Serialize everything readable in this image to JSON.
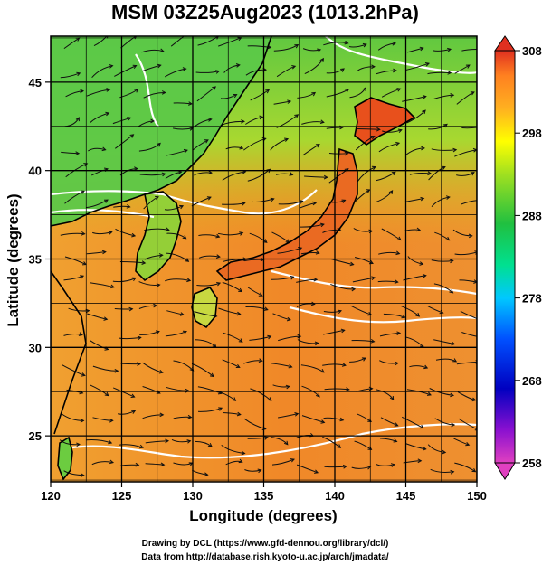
{
  "title": "MSM 03Z25Aug2023 (1013.2hPa)",
  "x_axis": {
    "label": "Longitude (degrees)",
    "range": [
      120,
      150
    ],
    "ticks": [
      120,
      125,
      130,
      135,
      140,
      145,
      150
    ]
  },
  "y_axis": {
    "label": "Latitude  (degrees)",
    "range": [
      22.4,
      47.6
    ],
    "ticks": [
      25,
      30,
      35,
      40,
      45
    ]
  },
  "colorbar": {
    "range": [
      258,
      308
    ],
    "ticks": [
      258,
      268,
      278,
      288,
      298,
      308
    ]
  },
  "credits": {
    "line1": "Drawing by DCL (https://www.gfd-dennou.org/library/dcl/)",
    "line2": "Data from http://database.rish.kyoto-u.ac.jp/arch/jmadata/"
  },
  "colors": {
    "colorbar_stops": [
      "#e040c0",
      "#7a00d0",
      "#0000c0",
      "#0060ff",
      "#00c0ff",
      "#00e080",
      "#20c040",
      "#90e020",
      "#ffff00",
      "#ffb020",
      "#ff8020",
      "#e03020"
    ],
    "land_green": "#58c848",
    "sea_orange": "#f08a2a",
    "contour": "#ffffff",
    "coast": "#000000"
  }
}
